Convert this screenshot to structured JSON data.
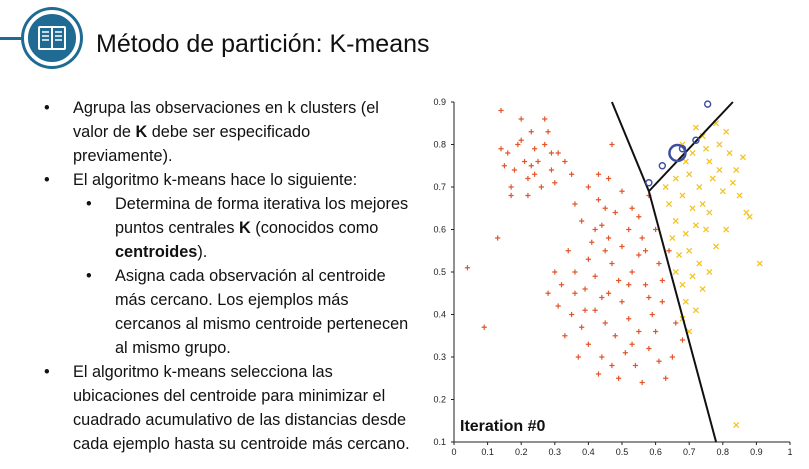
{
  "slide": {
    "title": "Método de partición: K-means",
    "logo_icon": "book-icon",
    "accent_color": "#1f6b93"
  },
  "bullets": {
    "b1_pre": "Agrupa las observaciones en k clusters (el valor de ",
    "b1_bold": "K",
    "b1_post": " debe ser especificado previamente).",
    "b2": "El algoritmo k-means hace lo siguiente:",
    "s1_pre": "Determina de forma iterativa los mejores puntos centrales ",
    "s1_bold1": "K",
    "s1_mid": " (conocidos como ",
    "s1_bold2": "centroides",
    "s1_post": ").",
    "s2": "Asigna cada observación al centroide más cercano. Los ejemplos más cercanos al mismo centroide pertenecen al mismo grupo.",
    "b3": "El algoritmo k-means selecciona las ubicaciones del centroide para minimizar el cuadrado acumulativo de las distancias desde cada ejemplo hasta su centroide más cercano."
  },
  "chart_data": {
    "type": "scatter",
    "annotation": "Iteration #0",
    "xlim": [
      0,
      1.0
    ],
    "ylim": [
      0.1,
      0.9
    ],
    "x_ticks": [
      "0",
      "0.1",
      "0.2",
      "0.3",
      "0.4",
      "0.5",
      "0.6",
      "0.7",
      "0.8",
      "0.9",
      "1"
    ],
    "y_ticks": [
      "0.1",
      "0.2",
      "0.3",
      "0.4",
      "0.5",
      "0.6",
      "0.7",
      "0.8",
      "0.9"
    ],
    "colors": {
      "cluster_red": "#e2562b",
      "cluster_yellow": "#f2c21d",
      "centroid": "#3c4ea0",
      "boundary": "#111111"
    },
    "boundaries": [
      {
        "from": [
          0.47,
          0.9
        ],
        "to": [
          0.58,
          0.69
        ]
      },
      {
        "from": [
          0.58,
          0.69
        ],
        "to": [
          0.78,
          0.1
        ]
      },
      {
        "from": [
          0.58,
          0.69
        ],
        "to": [
          0.83,
          0.9
        ]
      }
    ],
    "centroids": [
      {
        "x": 0.665,
        "y": 0.78,
        "big": true
      },
      {
        "x": 0.68,
        "y": 0.79,
        "big": false
      },
      {
        "x": 0.62,
        "y": 0.75,
        "big": false
      },
      {
        "x": 0.72,
        "y": 0.81,
        "big": false
      },
      {
        "x": 0.755,
        "y": 0.895,
        "big": false
      },
      {
        "x": 0.58,
        "y": 0.71,
        "big": false
      }
    ],
    "clusters": [
      {
        "name": "",
        "marker": "plus",
        "color": "#e2562b",
        "points": [
          [
            0.16,
            0.78
          ],
          [
            0.18,
            0.74
          ],
          [
            0.2,
            0.81
          ],
          [
            0.22,
            0.72
          ],
          [
            0.24,
            0.79
          ],
          [
            0.25,
            0.76
          ],
          [
            0.27,
            0.8
          ],
          [
            0.29,
            0.74
          ],
          [
            0.31,
            0.78
          ],
          [
            0.17,
            0.7
          ],
          [
            0.21,
            0.76
          ],
          [
            0.23,
            0.83
          ],
          [
            0.26,
            0.7
          ],
          [
            0.28,
            0.83
          ],
          [
            0.3,
            0.71
          ],
          [
            0.19,
            0.8
          ],
          [
            0.24,
            0.73
          ],
          [
            0.15,
            0.75
          ],
          [
            0.22,
            0.68
          ],
          [
            0.33,
            0.76
          ],
          [
            0.27,
            0.86
          ],
          [
            0.2,
            0.86
          ],
          [
            0.14,
            0.88
          ],
          [
            0.29,
            0.78
          ],
          [
            0.23,
            0.75
          ],
          [
            0.35,
            0.73
          ],
          [
            0.36,
            0.66
          ],
          [
            0.4,
            0.7
          ],
          [
            0.43,
            0.67
          ],
          [
            0.46,
            0.72
          ],
          [
            0.5,
            0.69
          ],
          [
            0.53,
            0.65
          ],
          [
            0.44,
            0.61
          ],
          [
            0.48,
            0.64
          ],
          [
            0.52,
            0.6
          ],
          [
            0.55,
            0.63
          ],
          [
            0.41,
            0.57
          ],
          [
            0.45,
            0.55
          ],
          [
            0.5,
            0.56
          ],
          [
            0.56,
            0.58
          ],
          [
            0.6,
            0.6
          ],
          [
            0.38,
            0.62
          ],
          [
            0.34,
            0.55
          ],
          [
            0.3,
            0.5
          ],
          [
            0.28,
            0.45
          ],
          [
            0.32,
            0.47
          ],
          [
            0.36,
            0.5
          ],
          [
            0.39,
            0.46
          ],
          [
            0.42,
            0.49
          ],
          [
            0.46,
            0.45
          ],
          [
            0.49,
            0.48
          ],
          [
            0.53,
            0.5
          ],
          [
            0.57,
            0.47
          ],
          [
            0.61,
            0.52
          ],
          [
            0.64,
            0.55
          ],
          [
            0.31,
            0.42
          ],
          [
            0.35,
            0.4
          ],
          [
            0.38,
            0.37
          ],
          [
            0.42,
            0.41
          ],
          [
            0.45,
            0.38
          ],
          [
            0.48,
            0.35
          ],
          [
            0.52,
            0.39
          ],
          [
            0.55,
            0.36
          ],
          [
            0.59,
            0.4
          ],
          [
            0.62,
            0.43
          ],
          [
            0.66,
            0.38
          ],
          [
            0.4,
            0.33
          ],
          [
            0.44,
            0.3
          ],
          [
            0.47,
            0.28
          ],
          [
            0.51,
            0.31
          ],
          [
            0.54,
            0.28
          ],
          [
            0.58,
            0.32
          ],
          [
            0.61,
            0.29
          ],
          [
            0.65,
            0.3
          ],
          [
            0.68,
            0.34
          ],
          [
            0.43,
            0.26
          ],
          [
            0.49,
            0.25
          ],
          [
            0.56,
            0.24
          ],
          [
            0.63,
            0.25
          ],
          [
            0.37,
            0.3
          ],
          [
            0.33,
            0.35
          ],
          [
            0.5,
            0.43
          ],
          [
            0.44,
            0.44
          ],
          [
            0.58,
            0.44
          ],
          [
            0.47,
            0.52
          ],
          [
            0.4,
            0.53
          ],
          [
            0.55,
            0.54
          ],
          [
            0.62,
            0.48
          ],
          [
            0.36,
            0.45
          ],
          [
            0.52,
            0.47
          ],
          [
            0.45,
            0.65
          ],
          [
            0.42,
            0.6
          ],
          [
            0.6,
            0.36
          ],
          [
            0.57,
            0.55
          ],
          [
            0.39,
            0.41
          ],
          [
            0.04,
            0.51
          ],
          [
            0.09,
            0.37
          ],
          [
            0.17,
            0.68
          ],
          [
            0.14,
            0.79
          ],
          [
            0.13,
            0.58
          ],
          [
            0.43,
            0.73
          ],
          [
            0.47,
            0.8
          ],
          [
            0.58,
            0.68
          ],
          [
            0.46,
            0.58
          ],
          [
            0.53,
            0.33
          ]
        ]
      },
      {
        "name": "",
        "marker": "cross",
        "color": "#f2c21d",
        "points": [
          [
            0.68,
            0.8
          ],
          [
            0.71,
            0.78
          ],
          [
            0.74,
            0.82
          ],
          [
            0.76,
            0.76
          ],
          [
            0.79,
            0.8
          ],
          [
            0.82,
            0.78
          ],
          [
            0.84,
            0.74
          ],
          [
            0.7,
            0.73
          ],
          [
            0.73,
            0.7
          ],
          [
            0.77,
            0.72
          ],
          [
            0.8,
            0.69
          ],
          [
            0.83,
            0.71
          ],
          [
            0.86,
            0.77
          ],
          [
            0.72,
            0.84
          ],
          [
            0.78,
            0.85
          ],
          [
            0.81,
            0.83
          ],
          [
            0.75,
            0.79
          ],
          [
            0.69,
            0.76
          ],
          [
            0.66,
            0.72
          ],
          [
            0.68,
            0.68
          ],
          [
            0.71,
            0.65
          ],
          [
            0.74,
            0.66
          ],
          [
            0.64,
            0.66
          ],
          [
            0.66,
            0.62
          ],
          [
            0.69,
            0.59
          ],
          [
            0.72,
            0.61
          ],
          [
            0.75,
            0.6
          ],
          [
            0.65,
            0.58
          ],
          [
            0.67,
            0.54
          ],
          [
            0.7,
            0.55
          ],
          [
            0.73,
            0.52
          ],
          [
            0.76,
            0.5
          ],
          [
            0.66,
            0.5
          ],
          [
            0.68,
            0.47
          ],
          [
            0.71,
            0.49
          ],
          [
            0.74,
            0.46
          ],
          [
            0.69,
            0.43
          ],
          [
            0.72,
            0.41
          ],
          [
            0.68,
            0.39
          ],
          [
            0.7,
            0.36
          ],
          [
            0.78,
            0.56
          ],
          [
            0.81,
            0.6
          ],
          [
            0.85,
            0.68
          ],
          [
            0.87,
            0.64
          ],
          [
            0.91,
            0.52
          ],
          [
            0.84,
            0.14
          ],
          [
            0.88,
            0.63
          ],
          [
            0.63,
            0.7
          ],
          [
            0.76,
            0.64
          ],
          [
            0.79,
            0.74
          ]
        ]
      }
    ]
  }
}
